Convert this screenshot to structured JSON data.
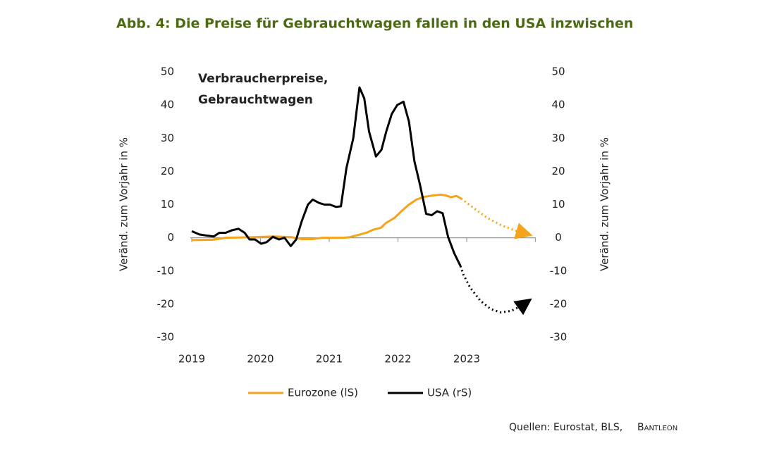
{
  "chart_data": {
    "type": "line",
    "title": "Abb. 4: Die Preise für Gebrauchtwagen fallen in den USA inzwischen",
    "annotation": [
      "Verbraucherpreise,",
      "Gebrauchtwagen"
    ],
    "ylabel": "Veränd. zum Vorjahr in %",
    "y2label": "Veränd. zum Vorjahr in %",
    "xlim": [
      2019,
      2024
    ],
    "xticks": [
      2019,
      2020,
      2021,
      2022,
      2023
    ],
    "ylim": [
      -30,
      50
    ],
    "yticks": [
      -30,
      -20,
      -10,
      0,
      10,
      20,
      30,
      40,
      50
    ],
    "y2lim": [
      -30,
      50
    ],
    "y2ticks": [
      -30,
      -20,
      -10,
      0,
      10,
      20,
      30,
      40,
      50
    ],
    "series": [
      {
        "name": "Eurozone (lS)",
        "color": "#f5a31a",
        "x": [
          2019.0,
          2019.3,
          2019.5,
          2019.9,
          2020.2,
          2020.45,
          2020.6,
          2020.75,
          2020.9,
          2021.2,
          2021.3,
          2021.45,
          2021.55,
          2021.65,
          2021.75,
          2021.83,
          2021.95,
          2022.05,
          2022.16,
          2022.27,
          2022.37,
          2022.49,
          2022.62,
          2022.69,
          2022.77,
          2022.85,
          2022.92
        ],
        "values": [
          -0.7,
          -0.6,
          0,
          0.2,
          0.4,
          0.2,
          -0.4,
          -0.4,
          0,
          0,
          0.2,
          1,
          1.6,
          2.5,
          3,
          4.5,
          6,
          8,
          10,
          11.5,
          12.3,
          12.7,
          13,
          12.8,
          12.2,
          12.6,
          11.8
        ],
        "forecast_x": [
          2022.92,
          2023.1,
          2023.3,
          2023.5,
          2023.7,
          2023.9
        ],
        "forecast_values": [
          11.8,
          9,
          6,
          3.8,
          2.2,
          1
        ]
      },
      {
        "name": "USA (rS)",
        "color": "#000000",
        "axis": "y2",
        "x": [
          2019.0,
          2019.11,
          2019.24,
          2019.32,
          2019.4,
          2019.49,
          2019.59,
          2019.68,
          2019.77,
          2019.84,
          2019.92,
          2020.01,
          2020.09,
          2020.18,
          2020.27,
          2020.35,
          2020.44,
          2020.52,
          2020.6,
          2020.69,
          2020.76,
          2020.85,
          2020.93,
          2021.01,
          2021.1,
          2021.17,
          2021.25,
          2021.35,
          2021.44,
          2021.51,
          2021.58,
          2021.68,
          2021.76,
          2021.83,
          2021.91,
          2021.99,
          2022.08,
          2022.16,
          2022.24,
          2022.32,
          2022.41,
          2022.49,
          2022.57,
          2022.65,
          2022.73,
          2022.82,
          2022.91
        ],
        "values": [
          2,
          1,
          0.6,
          0.4,
          1.5,
          1.5,
          2.3,
          2.7,
          1.5,
          -0.5,
          -0.5,
          -1.8,
          -1.3,
          0.3,
          -0.5,
          0,
          -2.5,
          -0.5,
          5,
          10,
          11.5,
          10.5,
          10,
          10,
          9.3,
          9.5,
          21,
          30,
          45.3,
          42,
          32,
          24.5,
          26.5,
          32,
          37.3,
          40,
          41,
          35,
          23,
          16,
          7.2,
          6.8,
          8,
          7.4,
          0.2,
          -4.7,
          -8.5
        ],
        "forecast_x": [
          2022.91,
          2022.95,
          2023.05,
          2023.2,
          2023.35,
          2023.5,
          2023.65,
          2023.8,
          2023.9
        ],
        "forecast_values": [
          -8.5,
          -11,
          -15,
          -19,
          -21.5,
          -22.5,
          -22,
          -20.5,
          -19
        ]
      }
    ],
    "source": "Quellen: Eurostat, BLS,",
    "source_brand": "Bantleon"
  }
}
